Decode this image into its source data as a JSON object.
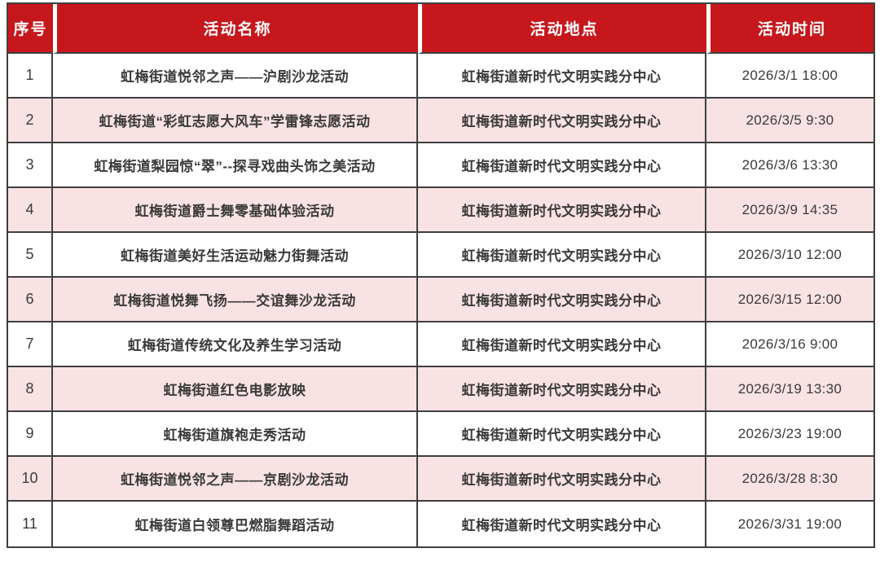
{
  "colors": {
    "header_bg": "#c6171d",
    "header_text": "#ffffff",
    "row_bg": "#ffffff",
    "row_alt_bg": "#f9e2e4",
    "border": "#3f3f3f",
    "body_text": "#3a3a3a"
  },
  "table": {
    "columns": [
      "序号",
      "活动名称",
      "活动地点",
      "活动时间"
    ],
    "rows": [
      {
        "index": "1",
        "name": "虹梅街道悦邻之声——沪剧沙龙活动",
        "location": "虹梅街道新时代文明实践分中心",
        "time": "2026/3/1 18:00"
      },
      {
        "index": "2",
        "name": "虹梅街道“彩虹志愿大风车”学雷锋志愿活动",
        "location": "虹梅街道新时代文明实践分中心",
        "time": "2026/3/5 9:30"
      },
      {
        "index": "3",
        "name": "虹梅街道梨园惊“翠”--探寻戏曲头饰之美活动",
        "location": "虹梅街道新时代文明实践分中心",
        "time": "2026/3/6 13:30"
      },
      {
        "index": "4",
        "name": "虹梅街道爵士舞零基础体验活动",
        "location": "虹梅街道新时代文明实践分中心",
        "time": "2026/3/9 14:35"
      },
      {
        "index": "5",
        "name": "虹梅街道美好生活运动魅力街舞活动",
        "location": "虹梅街道新时代文明实践分中心",
        "time": "2026/3/10 12:00"
      },
      {
        "index": "6",
        "name": "虹梅街道悦舞飞扬——交谊舞沙龙活动",
        "location": "虹梅街道新时代文明实践分中心",
        "time": "2026/3/15 12:00"
      },
      {
        "index": "7",
        "name": "虹梅街道传统文化及养生学习活动",
        "location": "虹梅街道新时代文明实践分中心",
        "time": "2026/3/16 9:00"
      },
      {
        "index": "8",
        "name": "虹梅街道红色电影放映",
        "location": "虹梅街道新时代文明实践分中心",
        "time": "2026/3/19 13:30"
      },
      {
        "index": "9",
        "name": "虹梅街道旗袍走秀活动",
        "location": "虹梅街道新时代文明实践分中心",
        "time": "2026/3/23 19:00"
      },
      {
        "index": "10",
        "name": "虹梅街道悦邻之声——京剧沙龙活动",
        "location": "虹梅街道新时代文明实践分中心",
        "time": "2026/3/28 8:30"
      },
      {
        "index": "11",
        "name": "虹梅街道白领尊巴燃脂舞蹈活动",
        "location": "虹梅街道新时代文明实践分中心",
        "time": "2026/3/31 19:00"
      }
    ]
  }
}
